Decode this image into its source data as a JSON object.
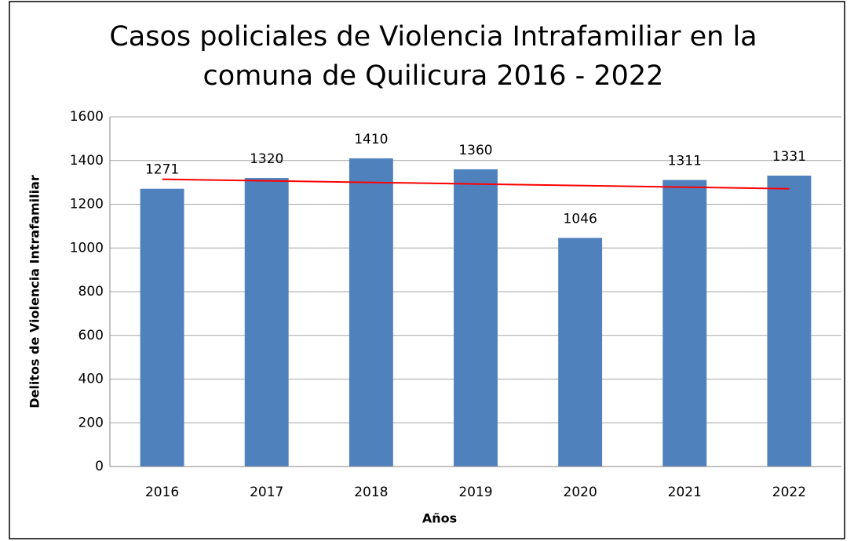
{
  "chart_data": {
    "type": "bar",
    "title": [
      "Casos policiales de Violencia Intrafamiliar en la",
      "comuna de Quilicura 2016 - 2022"
    ],
    "xlabel": "Años",
    "ylabel": "Delitos de Violencia Intrafamiliar",
    "categories": [
      "2016",
      "2017",
      "2018",
      "2019",
      "2020",
      "2021",
      "2022"
    ],
    "values": [
      1271,
      1320,
      1410,
      1360,
      1046,
      1311,
      1331
    ],
    "color": "#4f81bd",
    "ylim": [
      0,
      1600
    ],
    "yticks": [
      0,
      200,
      400,
      600,
      800,
      1000,
      1200,
      1400,
      1600
    ],
    "grid": true,
    "trendline": "linear",
    "trendline_color": "#ff0000"
  }
}
